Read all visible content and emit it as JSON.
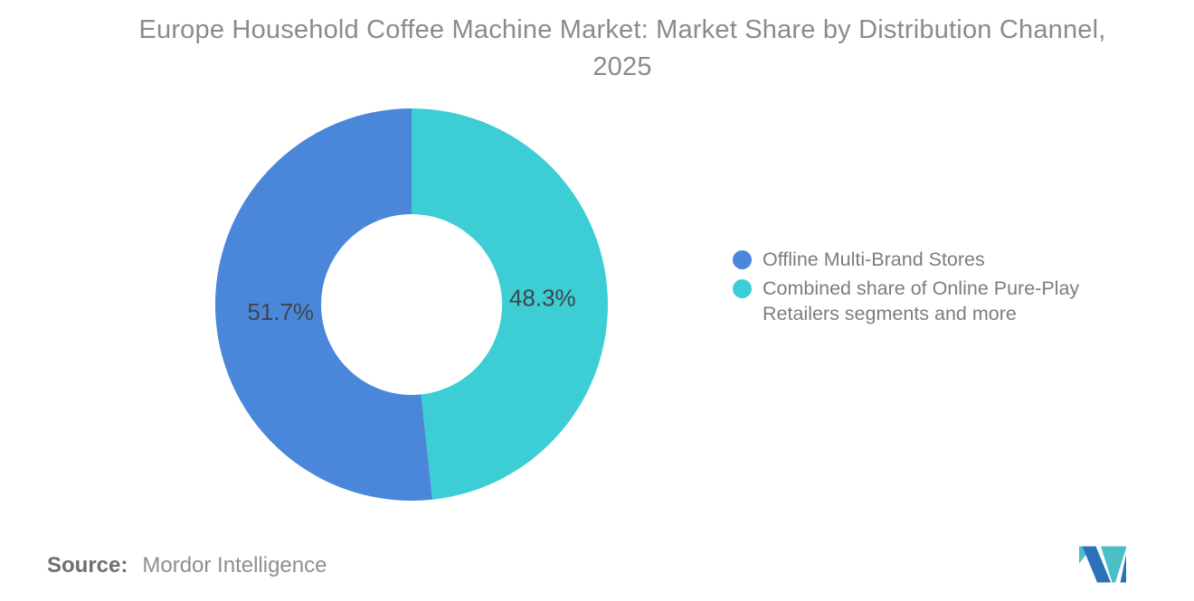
{
  "title": "Europe Household Coffee Machine Market: Market Share by Distribution Channel, 2025",
  "source": {
    "label": "Source:",
    "value": "Mordor Intelligence"
  },
  "brand": {
    "logo_blue": "#2D72B8",
    "logo_teal": "#4BBFC7"
  },
  "chart_data": {
    "type": "pie",
    "subtype": "donut",
    "title": "Europe Household Coffee Machine Market: Market Share by Distribution Channel, 2025",
    "legend_position": "right",
    "start_position": "top",
    "direction": "counterclockwise",
    "label_color": "#41444E",
    "series": [
      {
        "name": "Offline Multi-Brand Stores",
        "value": 51.7,
        "color": "#4A87DB"
      },
      {
        "name": "Combined share of Online Pure-Play Retailers segments and more",
        "value": 48.3,
        "color": "#3CCED4"
      }
    ],
    "data_labels": [
      "51.7%",
      "48.3%"
    ]
  }
}
